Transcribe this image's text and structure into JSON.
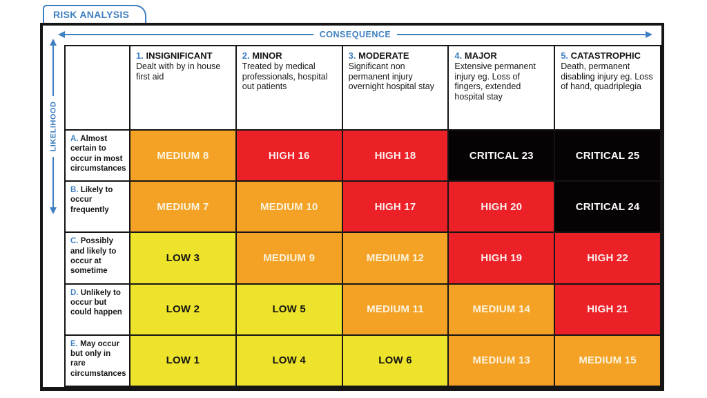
{
  "tab": {
    "label": "RISK ANALYSIS"
  },
  "axes": {
    "consequence": "CONSEQUENCE",
    "likelihood": "LIKELIHOOD"
  },
  "columns": [
    {
      "num": "1.",
      "name": "INSIGNIFICANT",
      "desc": "Dealt with by in house first aid"
    },
    {
      "num": "2.",
      "name": "MINOR",
      "desc": "Treated by medical professionals, hospital out patients"
    },
    {
      "num": "3.",
      "name": "MODERATE",
      "desc": "Significant non permanent injury overnight hospital stay"
    },
    {
      "num": "4.",
      "name": "MAJOR",
      "desc": "Extensive permanent injury eg. Loss of fingers, extended hospital stay"
    },
    {
      "num": "5.",
      "name": "CATASTROPHIC",
      "desc": "Death, permanent disabling injury eg. Loss of hand, quadriplegia"
    }
  ],
  "rows": [
    {
      "num": "A.",
      "desc": "Almost certain to occur in most circumstances",
      "cells": [
        {
          "label": "MEDIUM 8",
          "level": "medium"
        },
        {
          "label": "HIGH 16",
          "level": "high"
        },
        {
          "label": "HIGH 18",
          "level": "high"
        },
        {
          "label": "CRITICAL 23",
          "level": "critical"
        },
        {
          "label": "CRITICAL 25",
          "level": "critical"
        }
      ]
    },
    {
      "num": "B.",
      "desc": "Likely to occur frequently",
      "cells": [
        {
          "label": "MEDIUM 7",
          "level": "medium"
        },
        {
          "label": "MEDIUM 10",
          "level": "medium"
        },
        {
          "label": "HIGH 17",
          "level": "high"
        },
        {
          "label": "HIGH 20",
          "level": "high"
        },
        {
          "label": "CRITICAL 24",
          "level": "critical"
        }
      ]
    },
    {
      "num": "C.",
      "desc": "Possibly and likely to occur at sometime",
      "cells": [
        {
          "label": "LOW 3",
          "level": "low"
        },
        {
          "label": "MEDIUM 9",
          "level": "medium"
        },
        {
          "label": "MEDIUM 12",
          "level": "medium"
        },
        {
          "label": "HIGH 19",
          "level": "high"
        },
        {
          "label": "HIGH 22",
          "level": "high"
        }
      ]
    },
    {
      "num": "D.",
      "desc": "Unlikely to occur but could happen",
      "cells": [
        {
          "label": "LOW 2",
          "level": "low"
        },
        {
          "label": "LOW 5",
          "level": "low"
        },
        {
          "label": "MEDIUM 11",
          "level": "medium"
        },
        {
          "label": "MEDIUM 14",
          "level": "medium"
        },
        {
          "label": "HIGH 21",
          "level": "high"
        }
      ]
    },
    {
      "num": "E.",
      "desc": "May occur but only in rare circumstances",
      "cells": [
        {
          "label": "LOW 1",
          "level": "low"
        },
        {
          "label": "LOW 4",
          "level": "low"
        },
        {
          "label": "LOW 6",
          "level": "low"
        },
        {
          "label": "MEDIUM 13",
          "level": "medium"
        },
        {
          "label": "MEDIUM 15",
          "level": "medium"
        }
      ]
    }
  ],
  "colors": {
    "accent": "#3E7FC1",
    "grid": "#151515",
    "levels": {
      "low": {
        "bg": "#EDE32A",
        "fg": "#141414"
      },
      "medium": {
        "bg": "#F4A226",
        "fg": "#FCF3DC"
      },
      "high": {
        "bg": "#EC2027",
        "fg": "#FDEFEF"
      },
      "critical": {
        "bg": "#070304",
        "fg": "#FBFBFB"
      }
    }
  },
  "chart_data": {
    "type": "heatmap",
    "title": "RISK ANALYSIS",
    "xlabel": "CONSEQUENCE",
    "ylabel": "LIKELIHOOD",
    "x_categories": [
      "1. INSIGNIFICANT",
      "2. MINOR",
      "3. MODERATE",
      "4. MAJOR",
      "5. CATASTROPHIC"
    ],
    "y_categories": [
      "A. Almost certain to occur in most circumstances",
      "B. Likely to occur frequently",
      "C. Possibly and likely to occur at sometime",
      "D. Unlikely to occur but could happen",
      "E. May occur but only in rare circumstances"
    ],
    "values": [
      [
        8,
        16,
        18,
        23,
        25
      ],
      [
        7,
        10,
        17,
        20,
        24
      ],
      [
        3,
        9,
        12,
        19,
        22
      ],
      [
        2,
        5,
        11,
        14,
        21
      ],
      [
        1,
        4,
        6,
        13,
        15
      ]
    ],
    "labels": [
      [
        "MEDIUM 8",
        "HIGH 16",
        "HIGH 18",
        "CRITICAL 23",
        "CRITICAL 25"
      ],
      [
        "MEDIUM 7",
        "MEDIUM 10",
        "HIGH 17",
        "HIGH 20",
        "CRITICAL 24"
      ],
      [
        "LOW 3",
        "MEDIUM 9",
        "MEDIUM 12",
        "HIGH 19",
        "HIGH 22"
      ],
      [
        "LOW 2",
        "LOW 5",
        "MEDIUM 11",
        "MEDIUM 14",
        "HIGH 21"
      ],
      [
        "LOW 1",
        "LOW 4",
        "LOW 6",
        "MEDIUM 13",
        "MEDIUM 15"
      ]
    ],
    "color_scale": {
      "LOW": "#EDE32A",
      "MEDIUM": "#F4A226",
      "HIGH": "#EC2027",
      "CRITICAL": "#070304"
    },
    "legend": "none",
    "grid": "on"
  }
}
